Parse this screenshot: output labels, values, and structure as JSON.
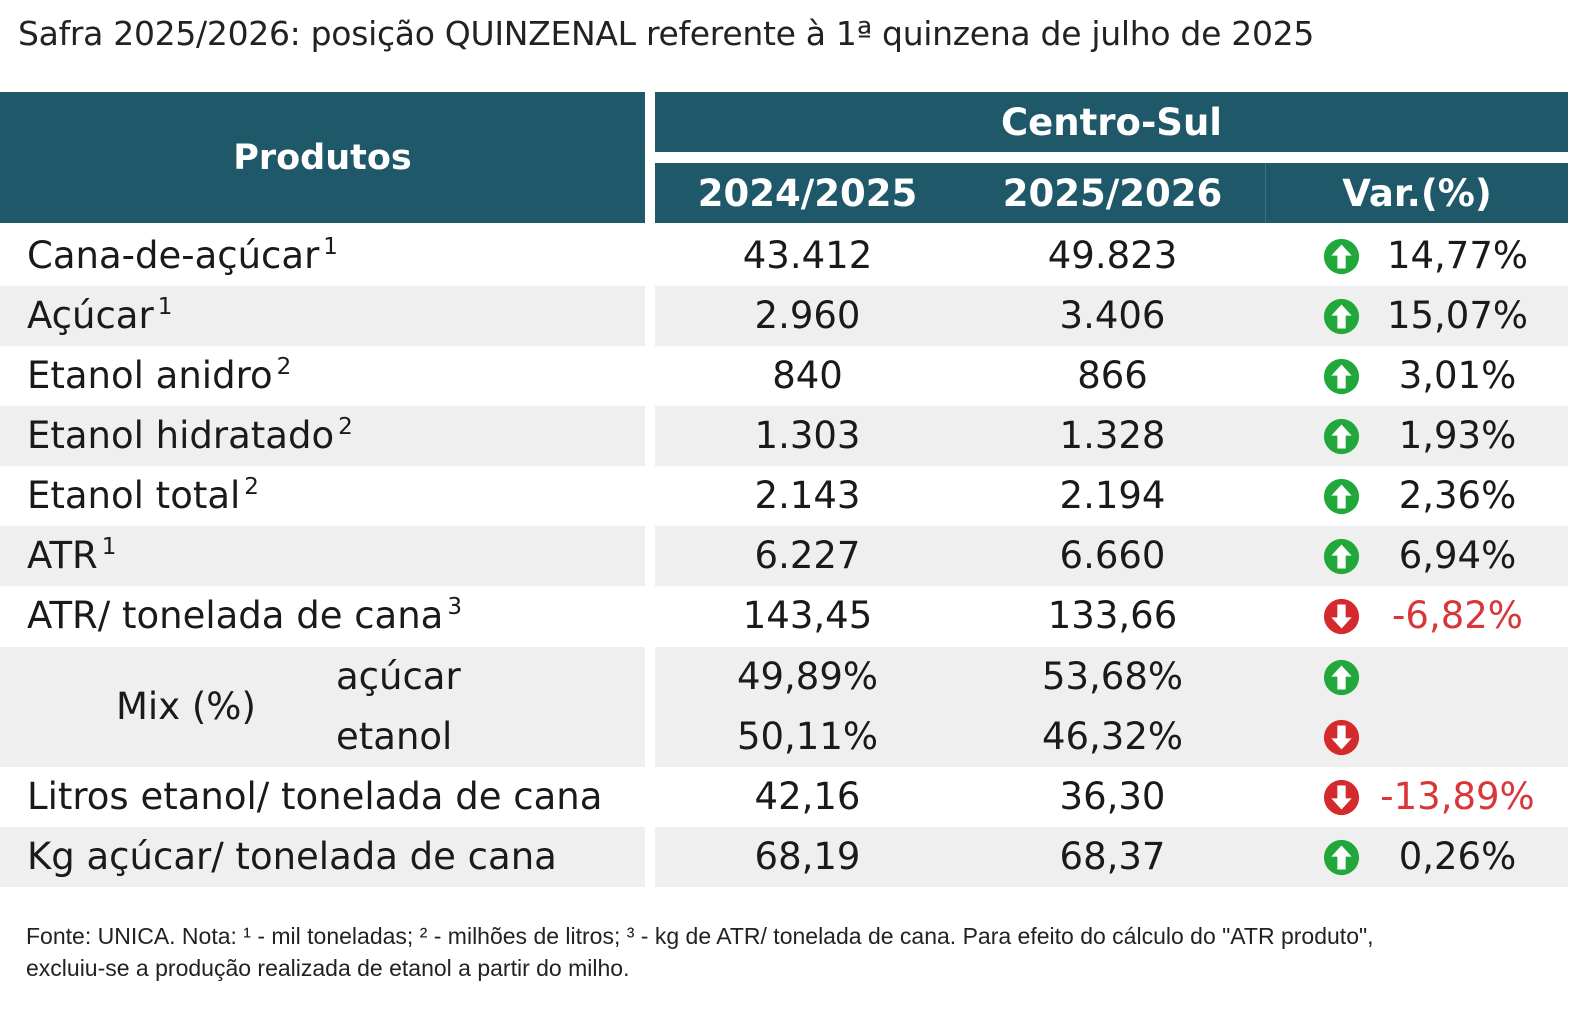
{
  "title": "Safra 2025/2026: posição QUINZENAL referente à 1ª quinzena de julho de 2025",
  "header": {
    "produtos": "Produtos",
    "region": "Centro-Sul",
    "year1": "2024/2025",
    "year2": "2025/2026",
    "var": "Var.(%)"
  },
  "colors": {
    "header_bg": "#1f5868",
    "up": "#22a83a",
    "down": "#d42a2e",
    "negative_text": "#d9363a"
  },
  "rows": [
    {
      "label": "Cana-de-açúcar",
      "note": "1",
      "v1": "43.412",
      "v2": "49.823",
      "trend": "up",
      "var": "14,77%"
    },
    {
      "label": "Açúcar",
      "note": "1",
      "v1": "2.960",
      "v2": "3.406",
      "trend": "up",
      "var": "15,07%"
    },
    {
      "label": "Etanol anidro",
      "note": "2",
      "v1": "840",
      "v2": "866",
      "trend": "up",
      "var": "3,01%"
    },
    {
      "label": "Etanol hidratado",
      "note": "2",
      "v1": "1.303",
      "v2": "1.328",
      "trend": "up",
      "var": "1,93%"
    },
    {
      "label": "Etanol total",
      "note": "2",
      "v1": "2.143",
      "v2": "2.194",
      "trend": "up",
      "var": "2,36%"
    },
    {
      "label": "ATR",
      "note": "1",
      "v1": "6.227",
      "v2": "6.660",
      "trend": "up",
      "var": "6,94%"
    },
    {
      "label": "ATR/ tonelada de cana",
      "note": "3",
      "v1": "143,45",
      "v2": "133,66",
      "trend": "down",
      "var": "-6,82%"
    }
  ],
  "mix": {
    "label": "Mix (%)",
    "items": [
      {
        "label": "açúcar",
        "v1": "49,89%",
        "v2": "53,68%",
        "trend": "up"
      },
      {
        "label": "etanol",
        "v1": "50,11%",
        "v2": "46,32%",
        "trend": "down"
      }
    ]
  },
  "rows_after": [
    {
      "label": "Litros etanol/ tonelada de cana",
      "v1": "42,16",
      "v2": "36,30",
      "trend": "down",
      "var": "-13,89%"
    },
    {
      "label": "Kg açúcar/ tonelada de cana",
      "v1": "68,19",
      "v2": "68,37",
      "trend": "up",
      "var": "0,26%"
    }
  ],
  "footer": {
    "line1": "Fonte: UNICA. Nota: ¹ - mil toneladas; ² - milhões de litros; ³ - kg de ATR/ tonelada de cana. Para efeito do cálculo do \"ATR produto\",",
    "line2": "excluiu-se a produção realizada de etanol a partir do milho."
  }
}
